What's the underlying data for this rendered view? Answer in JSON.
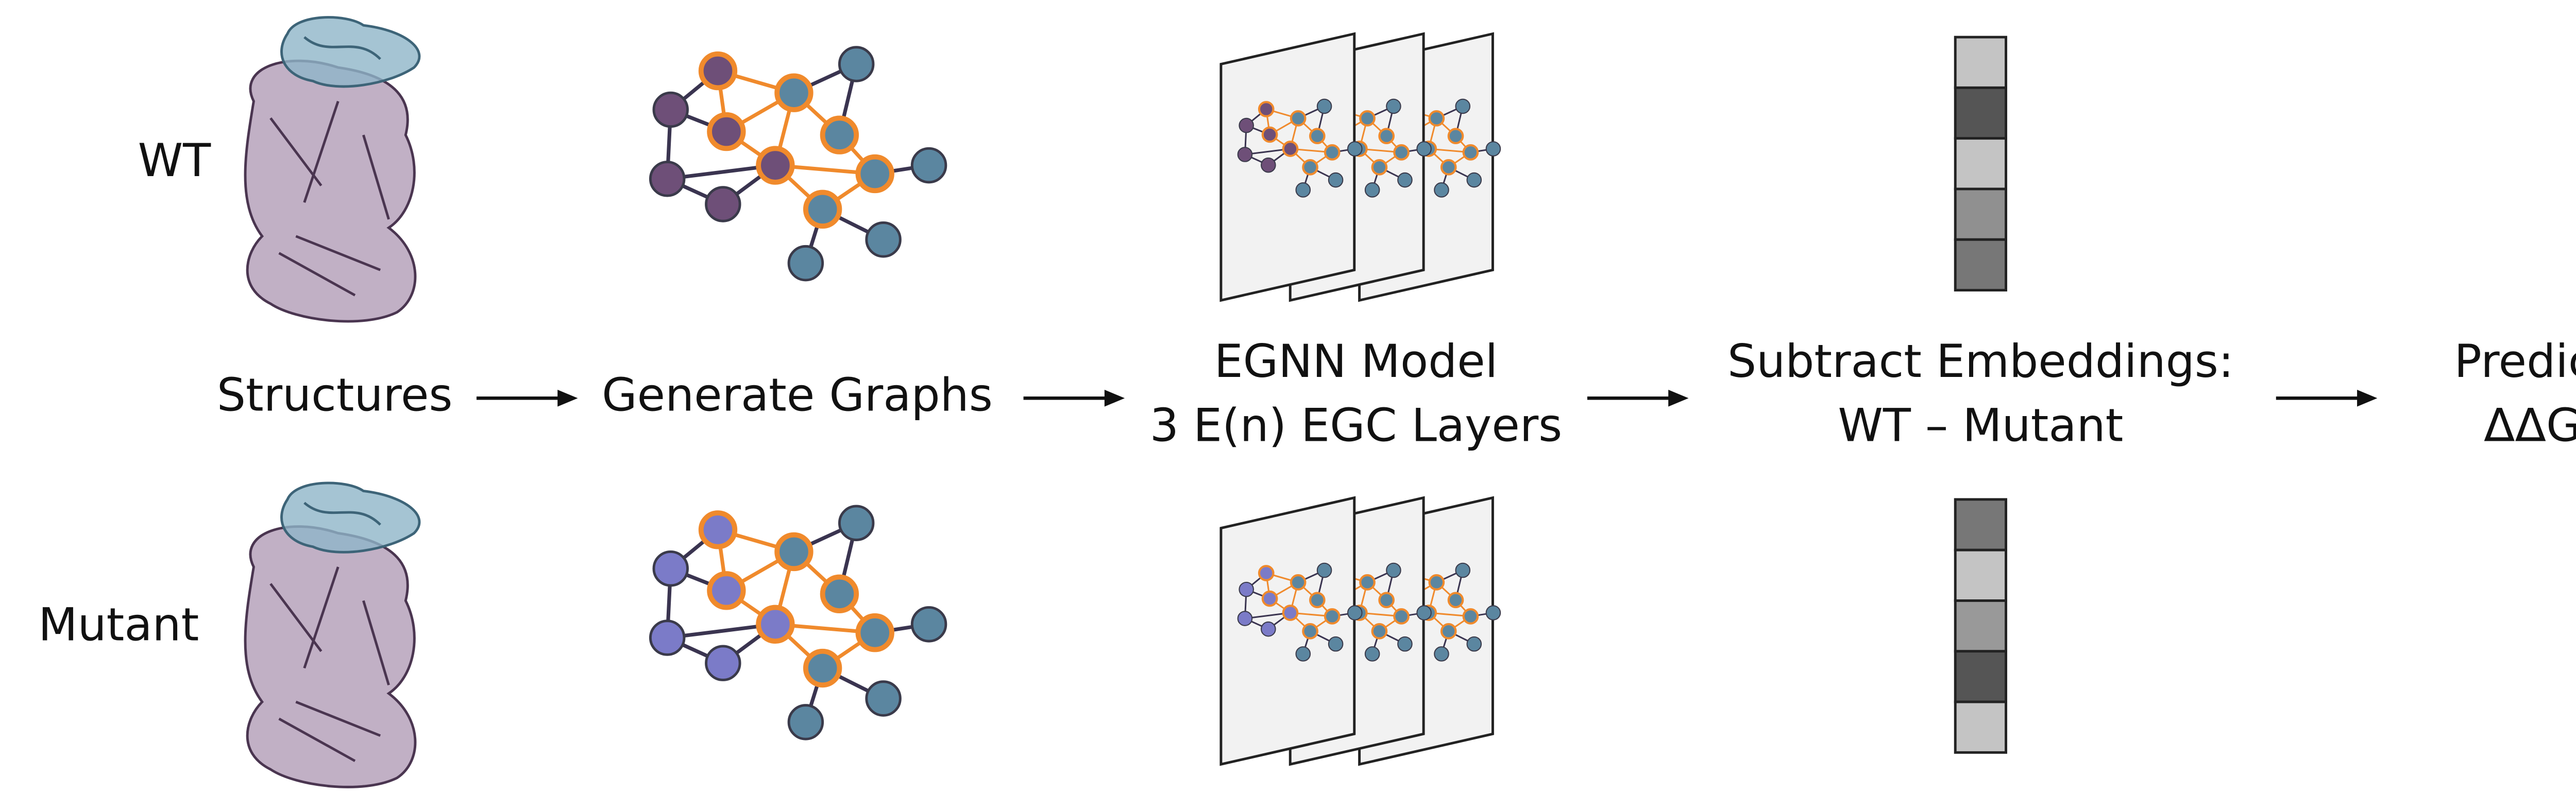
{
  "labels": {
    "wt": "WT",
    "mutant": "Mutant"
  },
  "steps": [
    {
      "lines": [
        "Structures"
      ]
    },
    {
      "lines": [
        "Generate Graphs"
      ]
    },
    {
      "lines": [
        "EGNN Model",
        "3 E(n) EGC Layers"
      ]
    },
    {
      "lines": [
        "Subtract Embeddings:",
        "WT – Mutant"
      ]
    },
    {
      "lines": [
        "Predict",
        "ΔΔG"
      ]
    }
  ]
}
